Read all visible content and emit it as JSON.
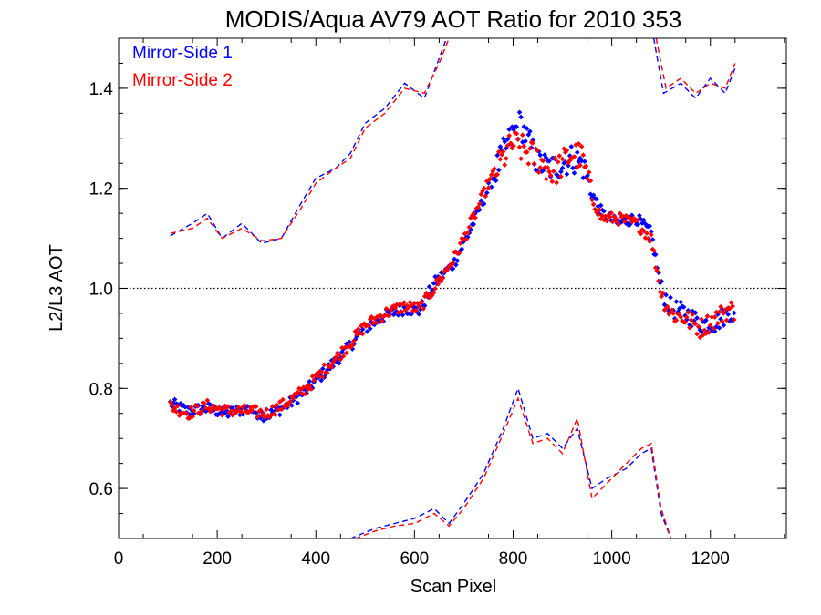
{
  "chart_data": {
    "type": "scatter",
    "title": "MODIS/Aqua AV79 AOT Ratio for 2010 353",
    "xlabel": "Scan Pixel",
    "ylabel": "L2/L3 AOT",
    "xlim": [
      0,
      1354
    ],
    "ylim": [
      0.5,
      1.5
    ],
    "x_ticks": [
      0,
      200,
      400,
      600,
      800,
      1000,
      1200
    ],
    "y_ticks": [
      0.6,
      0.8,
      1.0,
      1.2,
      1.4
    ],
    "x_tick_labels": [
      "0",
      "200",
      "400",
      "600",
      "800",
      "1000",
      "1200"
    ],
    "y_tick_labels": [
      "0.6",
      "0.8",
      "1.0",
      "1.2",
      "1.4"
    ],
    "reference_line": 1.0,
    "grid": false,
    "legend_position": "top-left",
    "series": [
      {
        "name": "Mirror-Side 1",
        "color": "#0000ff",
        "ratio": [
          [
            105,
            0.77
          ],
          [
            140,
            0.755
          ],
          [
            180,
            0.76
          ],
          [
            220,
            0.75
          ],
          [
            260,
            0.76
          ],
          [
            300,
            0.745
          ],
          [
            340,
            0.765
          ],
          [
            380,
            0.795
          ],
          [
            420,
            0.835
          ],
          [
            460,
            0.875
          ],
          [
            500,
            0.92
          ],
          [
            540,
            0.945
          ],
          [
            580,
            0.96
          ],
          [
            610,
            0.955
          ],
          [
            640,
            1.01
          ],
          [
            680,
            1.05
          ],
          [
            710,
            1.11
          ],
          [
            750,
            1.2
          ],
          [
            780,
            1.27
          ],
          [
            800,
            1.31
          ],
          [
            815,
            1.33
          ],
          [
            850,
            1.25
          ],
          [
            880,
            1.24
          ],
          [
            920,
            1.26
          ],
          [
            940,
            1.25
          ],
          [
            960,
            1.19
          ],
          [
            980,
            1.15
          ],
          [
            1010,
            1.13
          ],
          [
            1050,
            1.14
          ],
          [
            1080,
            1.11
          ],
          [
            1100,
            1.0
          ],
          [
            1120,
            0.96
          ],
          [
            1150,
            0.95
          ],
          [
            1180,
            0.93
          ],
          [
            1210,
            0.93
          ],
          [
            1240,
            0.955
          ],
          [
            1250,
            0.94
          ]
        ],
        "upper_band": [
          [
            105,
            1.105
          ],
          [
            150,
            1.13
          ],
          [
            180,
            1.15
          ],
          [
            210,
            1.1
          ],
          [
            250,
            1.13
          ],
          [
            290,
            1.09
          ],
          [
            330,
            1.1
          ],
          [
            370,
            1.17
          ],
          [
            400,
            1.22
          ],
          [
            440,
            1.24
          ],
          [
            470,
            1.27
          ],
          [
            500,
            1.33
          ],
          [
            540,
            1.36
          ],
          [
            580,
            1.41
          ],
          [
            620,
            1.38
          ],
          [
            650,
            1.46
          ],
          [
            665,
            1.5
          ]
        ],
        "upper_band_2": [
          [
            1085,
            1.5
          ],
          [
            1105,
            1.39
          ],
          [
            1140,
            1.41
          ],
          [
            1170,
            1.38
          ],
          [
            1200,
            1.42
          ],
          [
            1230,
            1.39
          ],
          [
            1250,
            1.44
          ]
        ],
        "lower_band": [
          [
            470,
            0.5
          ],
          [
            520,
            0.52
          ],
          [
            560,
            0.53
          ],
          [
            600,
            0.54
          ],
          [
            640,
            0.56
          ],
          [
            670,
            0.53
          ],
          [
            700,
            0.57
          ],
          [
            740,
            0.63
          ],
          [
            780,
            0.72
          ],
          [
            810,
            0.8
          ],
          [
            840,
            0.7
          ],
          [
            870,
            0.71
          ],
          [
            900,
            0.68
          ],
          [
            930,
            0.72
          ],
          [
            960,
            0.6
          ],
          [
            990,
            0.62
          ],
          [
            1030,
            0.64
          ],
          [
            1060,
            0.67
          ],
          [
            1080,
            0.68
          ],
          [
            1100,
            0.55
          ],
          [
            1120,
            0.5
          ]
        ]
      },
      {
        "name": "Mirror-Side 2",
        "color": "#ff0000",
        "ratio": [
          [
            105,
            0.765
          ],
          [
            140,
            0.75
          ],
          [
            180,
            0.765
          ],
          [
            220,
            0.755
          ],
          [
            260,
            0.755
          ],
          [
            300,
            0.75
          ],
          [
            340,
            0.77
          ],
          [
            380,
            0.8
          ],
          [
            420,
            0.84
          ],
          [
            460,
            0.88
          ],
          [
            500,
            0.925
          ],
          [
            540,
            0.95
          ],
          [
            580,
            0.965
          ],
          [
            610,
            0.96
          ],
          [
            640,
            1.0
          ],
          [
            680,
            1.06
          ],
          [
            710,
            1.12
          ],
          [
            750,
            1.21
          ],
          [
            780,
            1.26
          ],
          [
            800,
            1.29
          ],
          [
            815,
            1.28
          ],
          [
            850,
            1.26
          ],
          [
            880,
            1.23
          ],
          [
            920,
            1.27
          ],
          [
            940,
            1.26
          ],
          [
            960,
            1.18
          ],
          [
            980,
            1.14
          ],
          [
            1010,
            1.14
          ],
          [
            1050,
            1.13
          ],
          [
            1080,
            1.1
          ],
          [
            1100,
            0.99
          ],
          [
            1120,
            0.95
          ],
          [
            1150,
            0.94
          ],
          [
            1180,
            0.92
          ],
          [
            1210,
            0.94
          ],
          [
            1240,
            0.96
          ],
          [
            1250,
            0.95
          ]
        ],
        "upper_band": [
          [
            105,
            1.11
          ],
          [
            150,
            1.12
          ],
          [
            180,
            1.14
          ],
          [
            210,
            1.1
          ],
          [
            250,
            1.12
          ],
          [
            290,
            1.095
          ],
          [
            330,
            1.1
          ],
          [
            370,
            1.16
          ],
          [
            400,
            1.21
          ],
          [
            440,
            1.24
          ],
          [
            470,
            1.26
          ],
          [
            500,
            1.32
          ],
          [
            540,
            1.35
          ],
          [
            580,
            1.4
          ],
          [
            620,
            1.39
          ],
          [
            650,
            1.45
          ],
          [
            670,
            1.5
          ]
        ],
        "upper_band_2": [
          [
            1090,
            1.5
          ],
          [
            1110,
            1.4
          ],
          [
            1140,
            1.42
          ],
          [
            1170,
            1.39
          ],
          [
            1200,
            1.41
          ],
          [
            1230,
            1.4
          ],
          [
            1250,
            1.45
          ]
        ],
        "lower_band": [
          [
            480,
            0.5
          ],
          [
            520,
            0.515
          ],
          [
            560,
            0.525
          ],
          [
            600,
            0.53
          ],
          [
            640,
            0.55
          ],
          [
            670,
            0.525
          ],
          [
            700,
            0.56
          ],
          [
            740,
            0.62
          ],
          [
            780,
            0.71
          ],
          [
            810,
            0.78
          ],
          [
            840,
            0.69
          ],
          [
            870,
            0.7
          ],
          [
            900,
            0.67
          ],
          [
            930,
            0.74
          ],
          [
            960,
            0.58
          ],
          [
            990,
            0.61
          ],
          [
            1030,
            0.65
          ],
          [
            1060,
            0.68
          ],
          [
            1080,
            0.69
          ],
          [
            1100,
            0.56
          ],
          [
            1120,
            0.5
          ]
        ]
      }
    ]
  }
}
